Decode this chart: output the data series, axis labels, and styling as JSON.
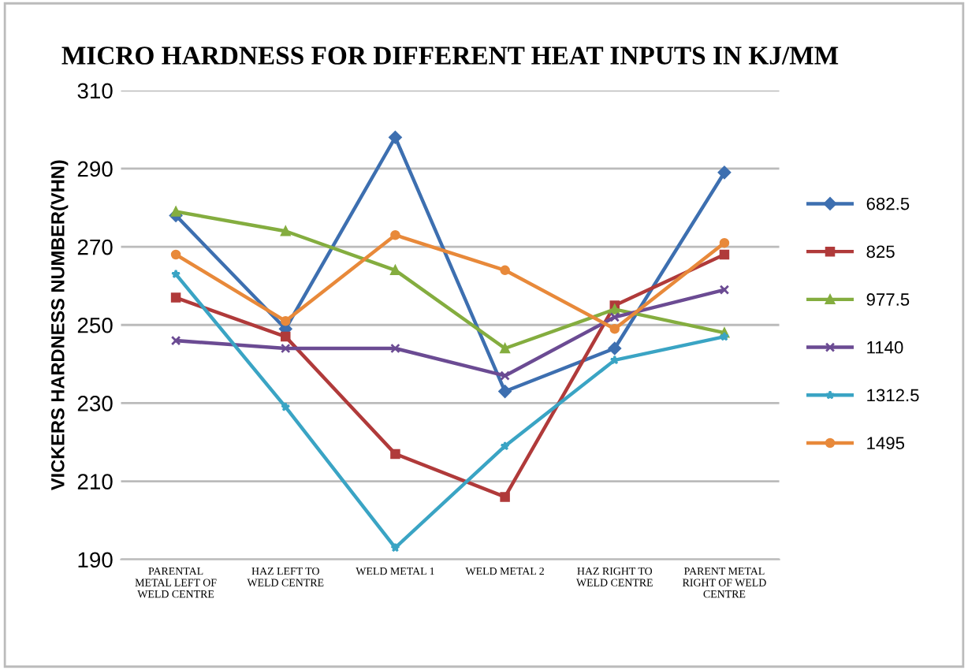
{
  "chart_data": {
    "type": "line",
    "title": "MICRO HARDNESS FOR DIFFERENT HEAT INPUTS IN KJ/MM",
    "ylabel": "VICKERS HARDNESS NUMBER(VHN)",
    "categories": [
      "PARENTAL\nMETAL LEFT OF\nWELD CENTRE",
      "HAZ LEFT TO\nWELD CENTRE",
      "WELD METAL 1",
      "WELD METAL 2",
      "HAZ RIGHT TO\nWELD CENTRE",
      "PARENT METAL\nRIGHT OF WELD\nCENTRE"
    ],
    "series": [
      {
        "name": "682.5",
        "color": "#3d6fb0",
        "marker": "diamond",
        "values": [
          278,
          249,
          298,
          233,
          244,
          289
        ]
      },
      {
        "name": "825",
        "color": "#b03a3a",
        "marker": "square",
        "values": [
          257,
          247,
          217,
          206,
          255,
          268
        ]
      },
      {
        "name": "977.5",
        "color": "#84ad3f",
        "marker": "triangle",
        "values": [
          279,
          274,
          264,
          244,
          254,
          248
        ]
      },
      {
        "name": "1140",
        "color": "#6b4b93",
        "marker": "cross",
        "values": [
          246,
          244,
          244,
          237,
          252,
          259
        ]
      },
      {
        "name": "1312.5",
        "color": "#3aa4c4",
        "marker": "star",
        "values": [
          263,
          229,
          193,
          219,
          241,
          247
        ]
      },
      {
        "name": "1495",
        "color": "#e8893a",
        "marker": "circle",
        "values": [
          268,
          251,
          273,
          264,
          249,
          271
        ]
      }
    ],
    "ylim": [
      190,
      310
    ],
    "yticks": [
      190,
      210,
      230,
      250,
      270,
      290,
      310
    ],
    "grid": "y",
    "legend": "right"
  }
}
